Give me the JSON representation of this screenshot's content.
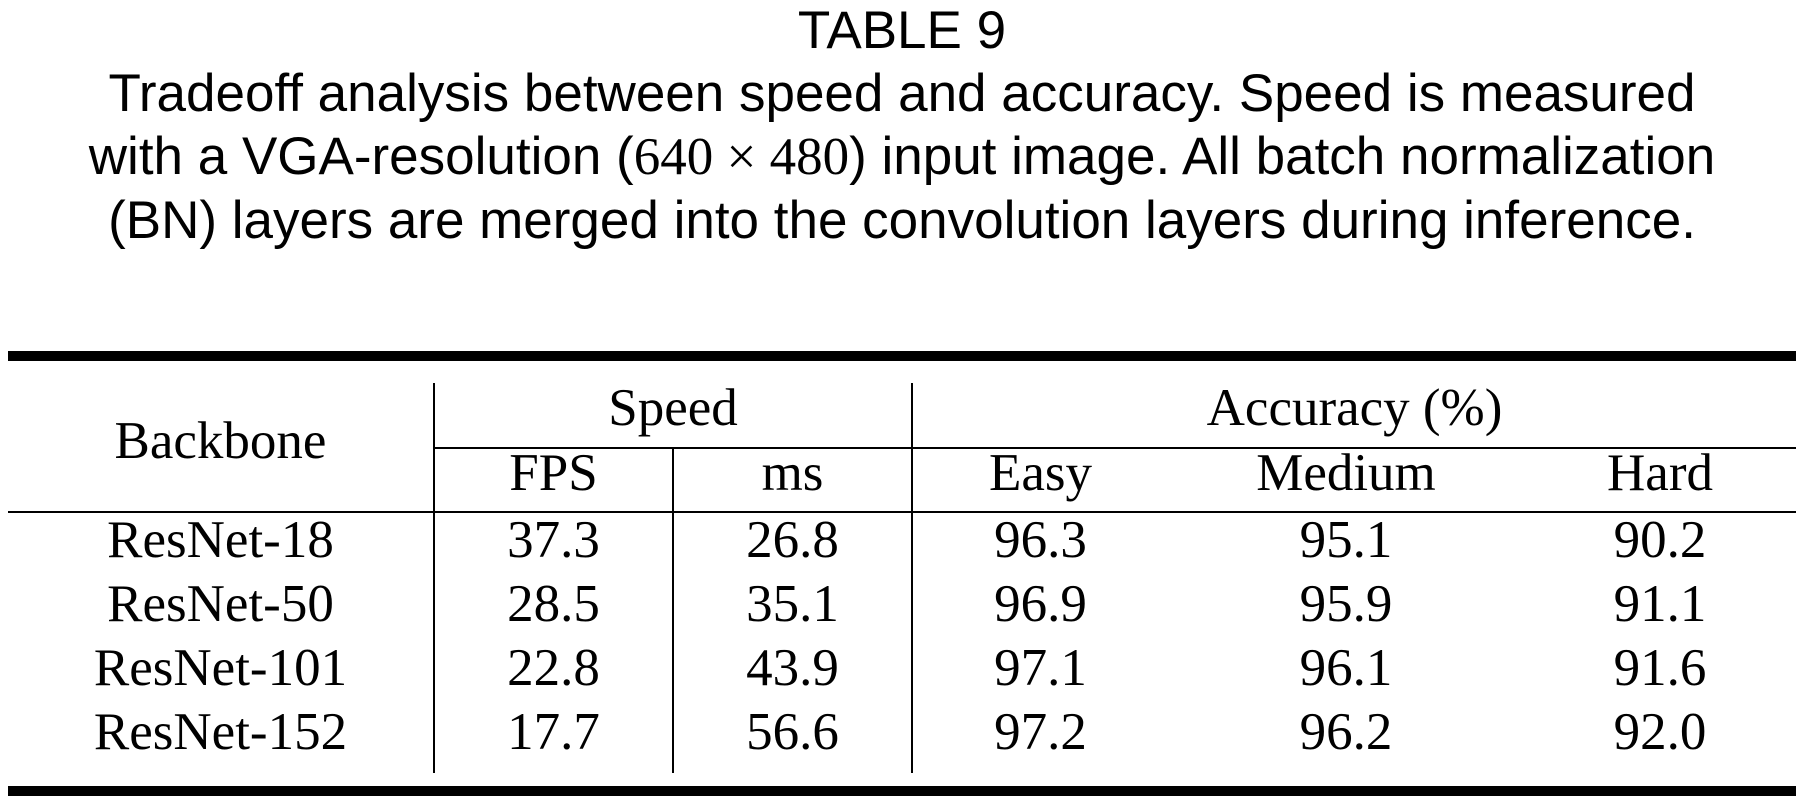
{
  "caption": {
    "table_label": "TABLE 9",
    "line1": "Tradeoff analysis between speed and accuracy. Speed is measured",
    "line2_before": "with a VGA-resolution (",
    "line2_math": "640 × 480",
    "line2_after": ") input image. All batch normalization",
    "line3": "(BN) layers are merged into the convolution layers during inference."
  },
  "table": {
    "backbone_header": "Backbone",
    "speed_header": "Speed",
    "accuracy_header": "Accuracy (%)",
    "sub_headers": [
      "FPS",
      "ms",
      "Easy",
      "Medium",
      "Hard"
    ],
    "rows": [
      {
        "backbone": "ResNet-18",
        "fps": "37.3",
        "ms": "26.8",
        "easy": "96.3",
        "medium": "95.1",
        "hard": "90.2"
      },
      {
        "backbone": "ResNet-50",
        "fps": "28.5",
        "ms": "35.1",
        "easy": "96.9",
        "medium": "95.9",
        "hard": "91.1"
      },
      {
        "backbone": "ResNet-101",
        "fps": "22.8",
        "ms": "43.9",
        "easy": "97.1",
        "medium": "96.1",
        "hard": "91.6"
      },
      {
        "backbone": "ResNet-152",
        "fps": "17.7",
        "ms": "56.6",
        "easy": "97.2",
        "medium": "96.2",
        "hard": "92.0"
      }
    ]
  }
}
